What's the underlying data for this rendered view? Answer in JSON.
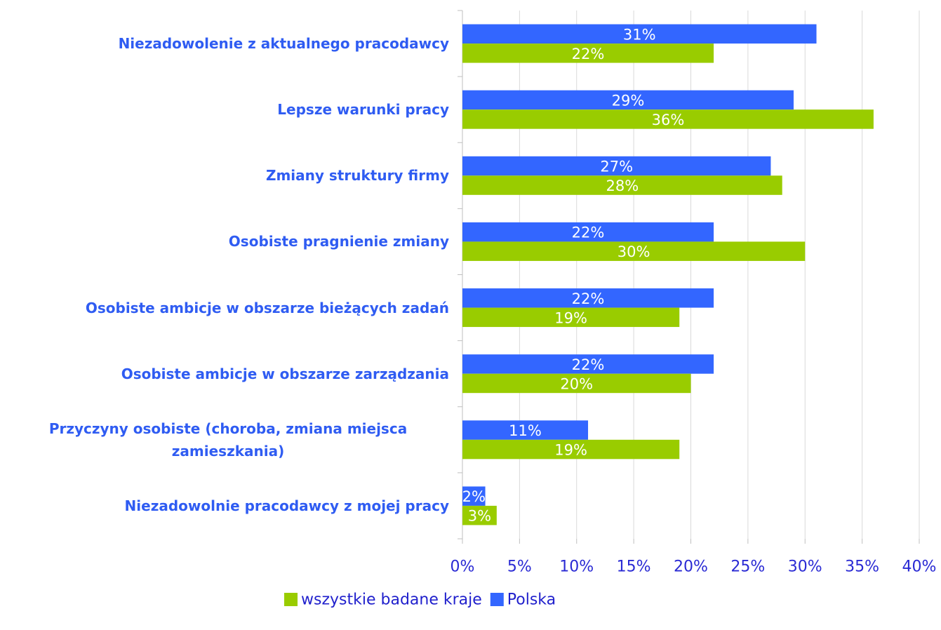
{
  "chart_data": {
    "type": "hbar",
    "categories": [
      "Niezadowolenie z aktualnego pracodawcy",
      "Lepsze warunki pracy",
      "Zmiany struktury firmy",
      "Osobiste pragnienie zmiany",
      "Osobiste ambicje w obszarze bieżących zadań",
      "Osobiste ambicje w obszarze zarządzania",
      "Przyczyny osobiste (choroba, zmiana miejsca zamieszkania)",
      "Niezadowolnie pracodawcy z mojej pracy"
    ],
    "series": [
      {
        "name": "Polska",
        "color": "#3366ff",
        "values": [
          31,
          29,
          27,
          22,
          22,
          22,
          11,
          2
        ],
        "value_labels": [
          "31%",
          "29%",
          "27%",
          "22%",
          "22%",
          "22%",
          "11%",
          "2%"
        ]
      },
      {
        "name": "wszystkie badane kraje",
        "color": "#99cc00",
        "values": [
          22,
          36,
          28,
          30,
          19,
          20,
          19,
          3
        ],
        "value_labels": [
          "22%",
          "36%",
          "28%",
          "30%",
          "19%",
          "20%",
          "19%",
          "3%"
        ]
      }
    ],
    "xlim": [
      0,
      40
    ],
    "xticks": [
      {
        "value": 0,
        "label": "0%"
      },
      {
        "value": 5,
        "label": "5%"
      },
      {
        "value": 10,
        "label": "10%"
      },
      {
        "value": 15,
        "label": "15%"
      },
      {
        "value": 20,
        "label": "20%"
      },
      {
        "value": 25,
        "label": "25%"
      },
      {
        "value": 30,
        "label": "30%"
      },
      {
        "value": 35,
        "label": "35%"
      },
      {
        "value": 40,
        "label": "40%"
      }
    ],
    "grid": true
  }
}
